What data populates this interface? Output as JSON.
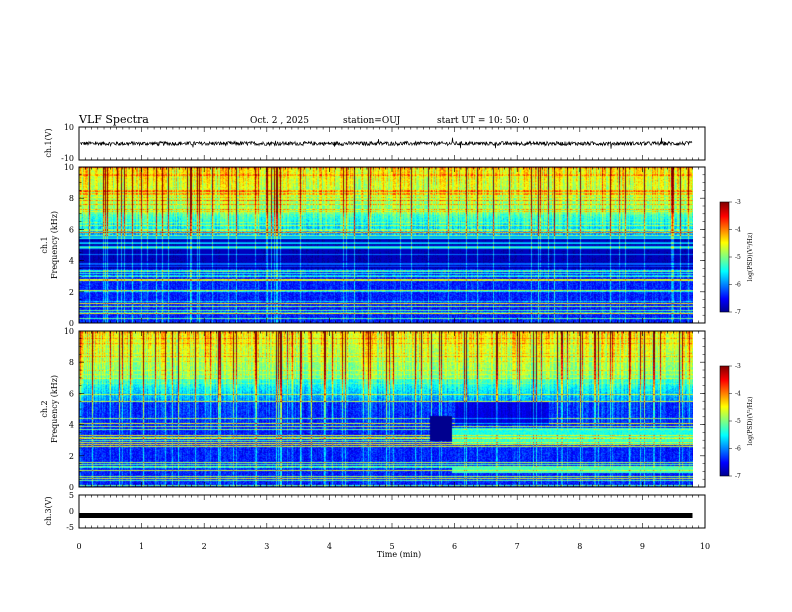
{
  "header": {
    "title": "VLF Spectra",
    "date": "Oct. 2 , 2025",
    "station": "station=OUJ",
    "start": "start UT = 10: 50: 0"
  },
  "chart_data": [
    {
      "type": "line",
      "panel": "ch1-waveform",
      "ylabel": "ch.1(V)",
      "ylim": [
        -10,
        10
      ],
      "yticks": [
        "10",
        "-10"
      ],
      "xlim": [
        0,
        10
      ],
      "data_extent_min": 9.8,
      "baseline": 0,
      "noise_amplitude": 1.2
    },
    {
      "type": "heatmap",
      "panel": "ch1-spectrogram",
      "ylabel": "ch.1\nFrequency (kHz)",
      "ylim": [
        0,
        10
      ],
      "yticks": [
        "0",
        "2",
        "4",
        "6",
        "8",
        "10"
      ],
      "xlim": [
        0,
        10
      ],
      "data_extent_min": 9.8,
      "colorbar": {
        "label": "log(PSD)(V²/Hz)",
        "range": [
          -7,
          -3
        ],
        "ticks": [
          "-3",
          "-4",
          "-5",
          "-6",
          "-7"
        ]
      }
    },
    {
      "type": "heatmap",
      "panel": "ch2-spectrogram",
      "ylabel": "ch.2\nFrequency (kHz)",
      "ylim": [
        0,
        10
      ],
      "yticks": [
        "0",
        "2",
        "4",
        "6",
        "8",
        "10"
      ],
      "xlim": [
        0,
        10
      ],
      "data_extent_min": 9.8,
      "colorbar": {
        "label": "log(PSD)(V²/Hz)",
        "range": [
          -7,
          -3
        ],
        "ticks": [
          "-3",
          "-4",
          "-5",
          "-6",
          "-7"
        ]
      }
    },
    {
      "type": "line",
      "panel": "ch3-waveform",
      "ylabel": "ch.3(V)",
      "ylim": [
        -5,
        5
      ],
      "yticks": [
        "5",
        "0",
        "-5"
      ],
      "xlim": [
        0,
        10
      ],
      "data_extent_min": 9.8,
      "baseline": -1.2
    }
  ],
  "xaxis": {
    "label": "Time (min)",
    "ticks": [
      "0",
      "1",
      "2",
      "3",
      "4",
      "5",
      "6",
      "7",
      "8",
      "9",
      "10"
    ]
  },
  "colors": {
    "jet": [
      "#00008f",
      "#0000ff",
      "#00ffff",
      "#80ff80",
      "#ffff00",
      "#ff0000",
      "#800000"
    ]
  }
}
